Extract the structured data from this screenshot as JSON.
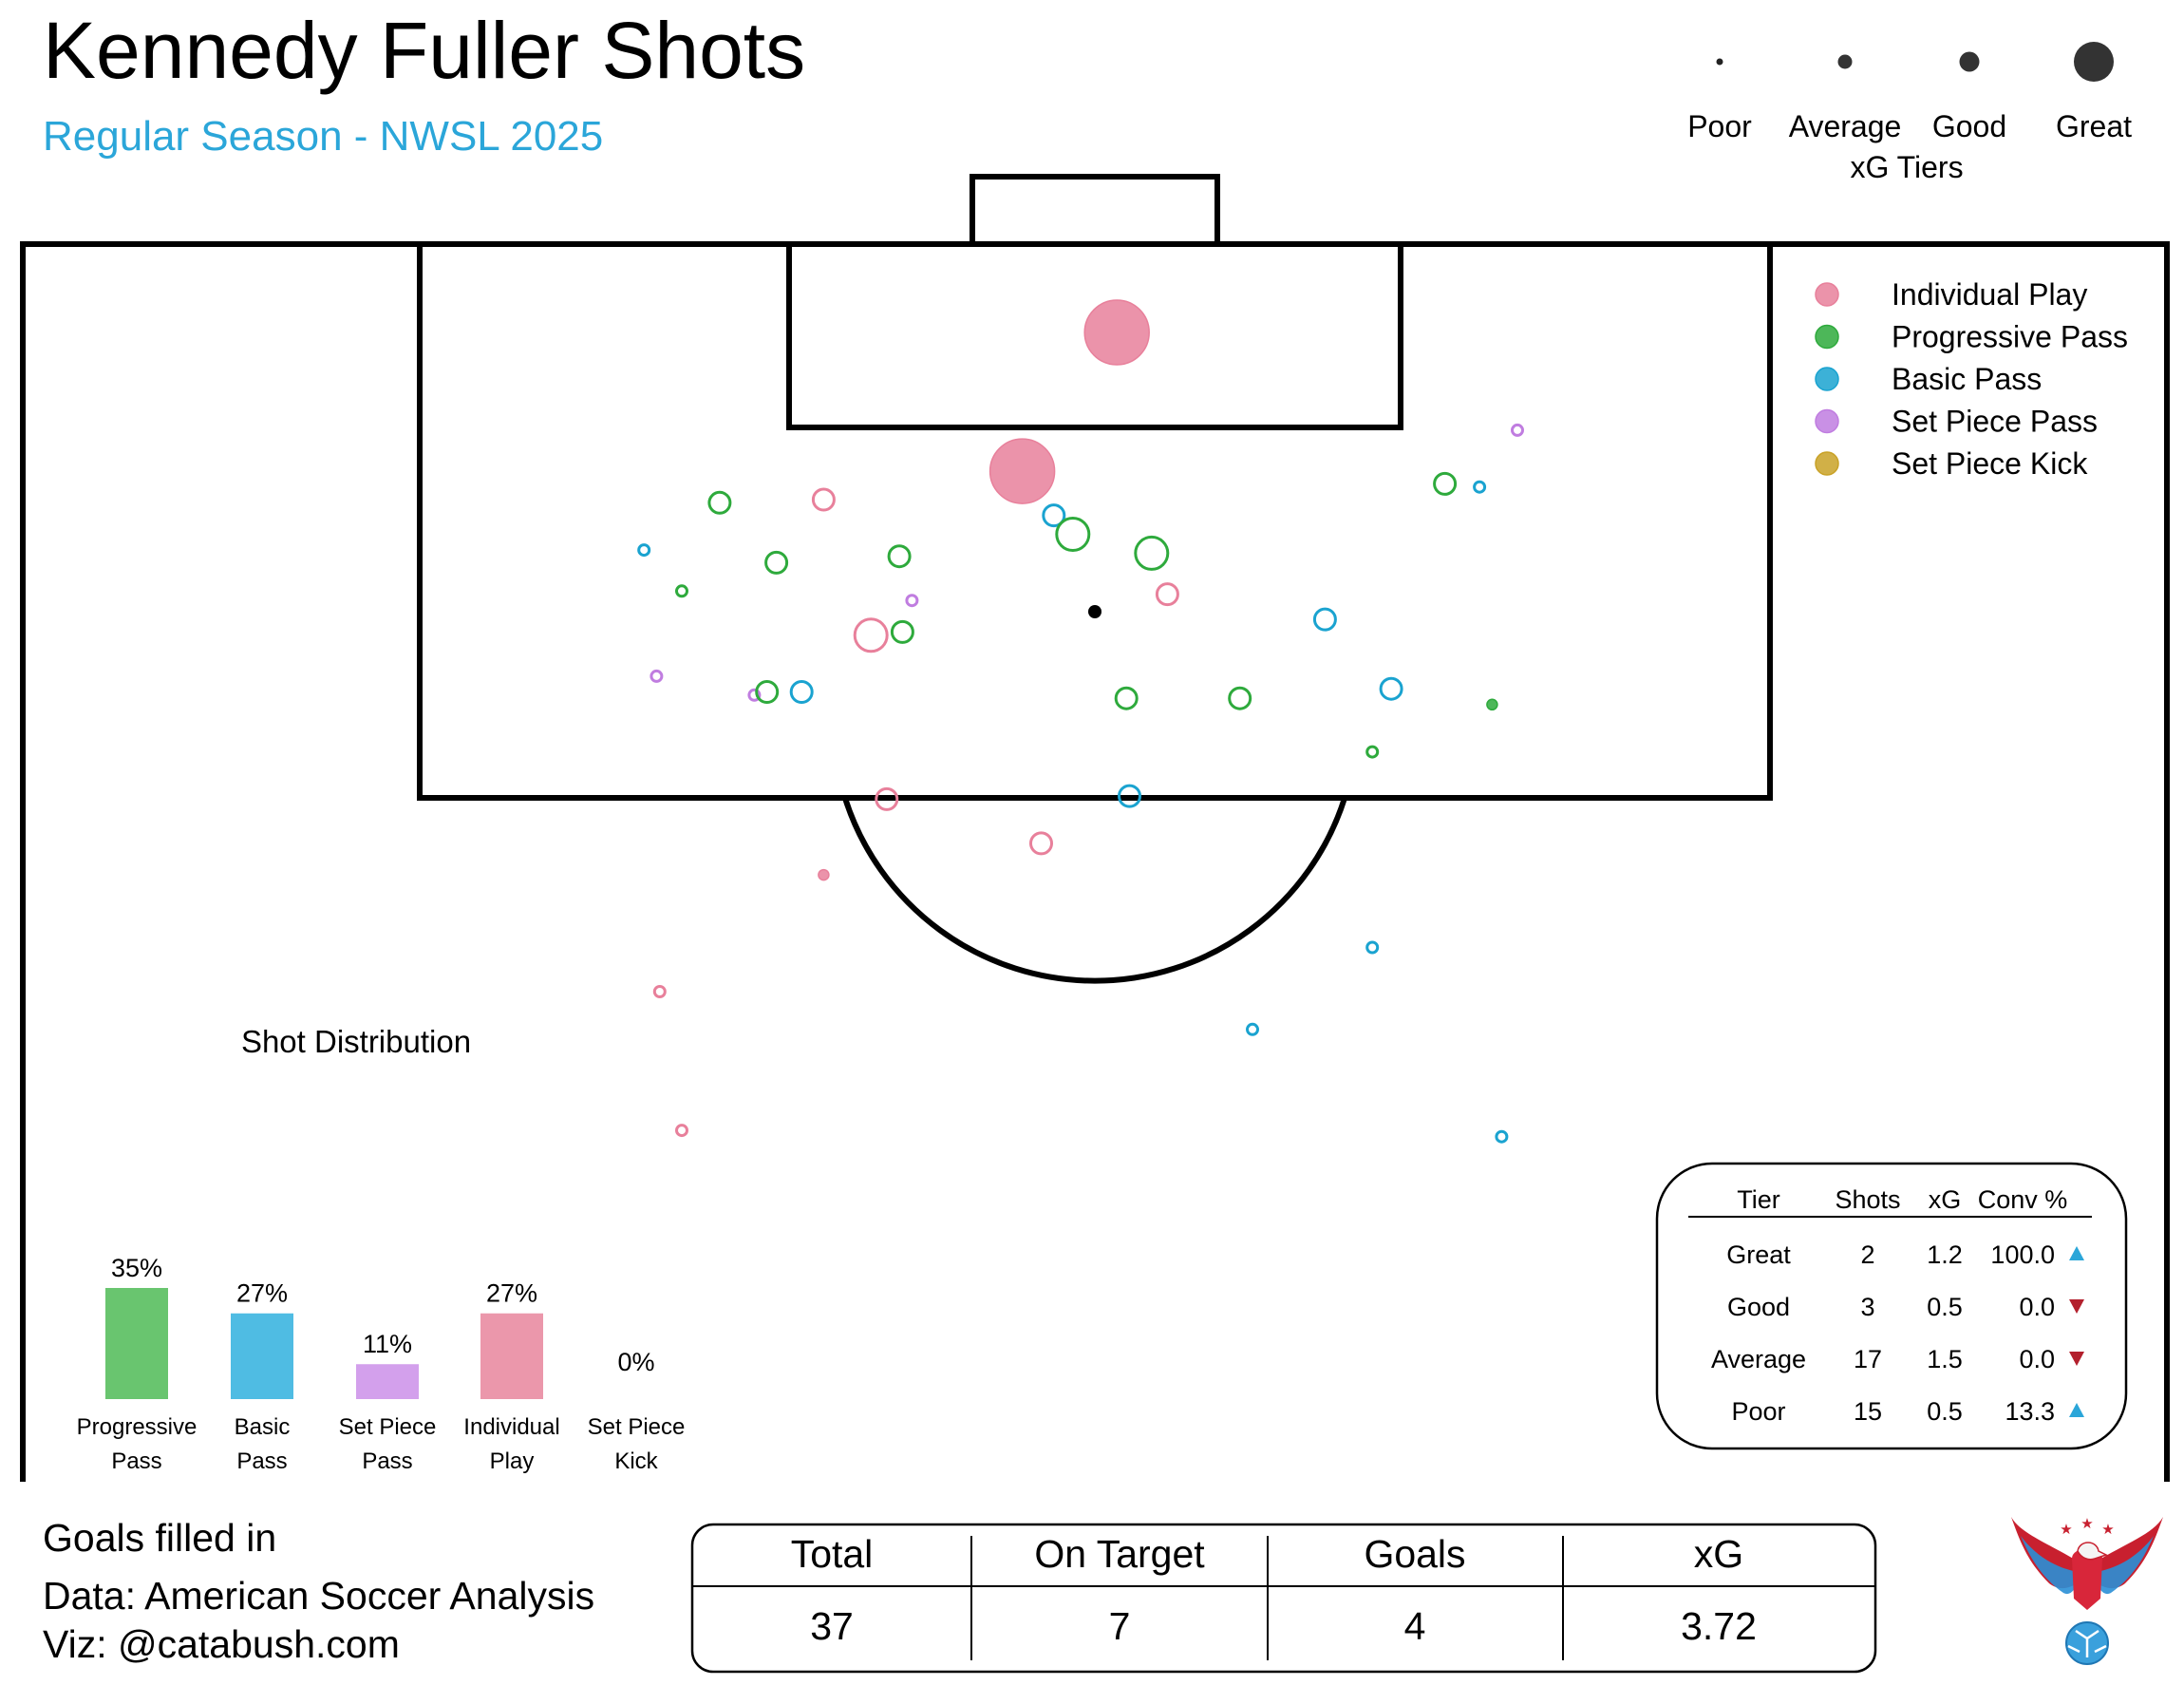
{
  "header": {
    "title": "Kennedy Fuller Shots",
    "subtitle": "Regular Season - NWSL 2025"
  },
  "colors": {
    "individual_play": "#e8809b",
    "progressive_pass": "#2eaa3c",
    "basic_pass": "#1aa3d0",
    "set_piece_pass": "#c07de0",
    "set_piece_kick": "#c9a227",
    "subtitle": "#2ba6d9",
    "up_arrow": "#2ba6d9",
    "down_arrow": "#b3202d",
    "bar_progressive": "#69c56f",
    "bar_basic": "#4fbce3",
    "bar_set_piece_pass": "#d3a0ec",
    "bar_individual": "#eb97ab",
    "bar_set_piece_kick": "#c9a227"
  },
  "xg_tiers": {
    "title": "xG Tiers",
    "items": [
      "Poor",
      "Average",
      "Good",
      "Great"
    ]
  },
  "legend": {
    "items": [
      {
        "label": "Individual Play",
        "key": "individual_play"
      },
      {
        "label": "Progressive Pass",
        "key": "progressive_pass"
      },
      {
        "label": "Basic Pass",
        "key": "basic_pass"
      },
      {
        "label": "Set Piece Pass",
        "key": "set_piece_pass"
      },
      {
        "label": "Set Piece Kick",
        "key": "set_piece_kick"
      }
    ]
  },
  "chart_data": [
    {
      "type": "scatter",
      "description_key": "shot_map",
      "notes": "Shot locations in pitch metres: x = distance from left touchline (0-68), y = distance from goal line (0-35 visible). Size = xG tier, filled = goal.",
      "x_range": [
        0,
        68
      ],
      "y_range": [
        0,
        35
      ],
      "shots": [
        {
          "x": 34.7,
          "y": 2.8,
          "tier": "Great",
          "category": "individual_play",
          "goal": true
        },
        {
          "x": 31.7,
          "y": 7.2,
          "tier": "Great",
          "category": "individual_play",
          "goal": true
        },
        {
          "x": 22.1,
          "y": 8.2,
          "tier": "Average",
          "category": "progressive_pass",
          "goal": false
        },
        {
          "x": 25.4,
          "y": 8.1,
          "tier": "Average",
          "category": "individual_play",
          "goal": false
        },
        {
          "x": 19.7,
          "y": 9.7,
          "tier": "Poor",
          "category": "basic_pass",
          "goal": false
        },
        {
          "x": 23.9,
          "y": 10.1,
          "tier": "Average",
          "category": "progressive_pass",
          "goal": false
        },
        {
          "x": 27.8,
          "y": 9.9,
          "tier": "Average",
          "category": "progressive_pass",
          "goal": false
        },
        {
          "x": 20.9,
          "y": 11.0,
          "tier": "Poor",
          "category": "progressive_pass",
          "goal": false
        },
        {
          "x": 28.2,
          "y": 11.3,
          "tier": "Poor",
          "category": "set_piece_pass",
          "goal": false
        },
        {
          "x": 32.7,
          "y": 8.6,
          "tier": "Average",
          "category": "basic_pass",
          "goal": false
        },
        {
          "x": 33.3,
          "y": 9.2,
          "tier": "Good",
          "category": "progressive_pass",
          "goal": false
        },
        {
          "x": 35.8,
          "y": 9.8,
          "tier": "Good",
          "category": "progressive_pass",
          "goal": false
        },
        {
          "x": 36.3,
          "y": 11.1,
          "tier": "Average",
          "category": "individual_play",
          "goal": false
        },
        {
          "x": 26.9,
          "y": 12.4,
          "tier": "Good",
          "category": "individual_play",
          "goal": false
        },
        {
          "x": 27.9,
          "y": 12.3,
          "tier": "Average",
          "category": "progressive_pass",
          "goal": false
        },
        {
          "x": 41.3,
          "y": 11.9,
          "tier": "Average",
          "category": "basic_pass",
          "goal": false
        },
        {
          "x": 45.1,
          "y": 7.6,
          "tier": "Average",
          "category": "progressive_pass",
          "goal": false
        },
        {
          "x": 46.2,
          "y": 7.7,
          "tier": "Poor",
          "category": "basic_pass",
          "goal": false
        },
        {
          "x": 47.4,
          "y": 5.9,
          "tier": "Poor",
          "category": "set_piece_pass",
          "goal": false
        },
        {
          "x": 20.1,
          "y": 13.7,
          "tier": "Poor",
          "category": "set_piece_pass",
          "goal": false
        },
        {
          "x": 23.2,
          "y": 14.3,
          "tier": "Poor",
          "category": "set_piece_pass",
          "goal": false
        },
        {
          "x": 23.6,
          "y": 14.2,
          "tier": "Average",
          "category": "progressive_pass",
          "goal": false
        },
        {
          "x": 24.7,
          "y": 14.2,
          "tier": "Average",
          "category": "basic_pass",
          "goal": false
        },
        {
          "x": 35.0,
          "y": 14.4,
          "tier": "Average",
          "category": "progressive_pass",
          "goal": false
        },
        {
          "x": 38.6,
          "y": 14.4,
          "tier": "Average",
          "category": "progressive_pass",
          "goal": false
        },
        {
          "x": 43.4,
          "y": 14.1,
          "tier": "Average",
          "category": "basic_pass",
          "goal": false
        },
        {
          "x": 46.6,
          "y": 14.6,
          "tier": "Poor",
          "category": "progressive_pass",
          "goal": true
        },
        {
          "x": 42.8,
          "y": 16.1,
          "tier": "Poor",
          "category": "progressive_pass",
          "goal": false
        },
        {
          "x": 27.4,
          "y": 17.6,
          "tier": "Average",
          "category": "individual_play",
          "goal": false
        },
        {
          "x": 35.1,
          "y": 17.5,
          "tier": "Average",
          "category": "basic_pass",
          "goal": false
        },
        {
          "x": 32.3,
          "y": 19.0,
          "tier": "Average",
          "category": "individual_play",
          "goal": false
        },
        {
          "x": 25.4,
          "y": 20.0,
          "tier": "Poor",
          "category": "individual_play",
          "goal": true
        },
        {
          "x": 42.8,
          "y": 22.3,
          "tier": "Poor",
          "category": "basic_pass",
          "goal": false
        },
        {
          "x": 20.2,
          "y": 23.7,
          "tier": "Poor",
          "category": "individual_play",
          "goal": false
        },
        {
          "x": 39.0,
          "y": 24.9,
          "tier": "Poor",
          "category": "basic_pass",
          "goal": false
        },
        {
          "x": 20.9,
          "y": 28.1,
          "tier": "Poor",
          "category": "individual_play",
          "goal": false
        },
        {
          "x": 46.9,
          "y": 28.3,
          "tier": "Poor",
          "category": "basic_pass",
          "goal": false
        }
      ]
    },
    {
      "type": "bar",
      "title": "Shot Distribution",
      "categories": [
        "Progressive Pass",
        "Basic Pass",
        "Set Piece Pass",
        "Individual Play",
        "Set Piece Kick"
      ],
      "category_lines": [
        [
          "Progressive",
          "Pass"
        ],
        [
          "Basic",
          "Pass"
        ],
        [
          "Set Piece",
          "Pass"
        ],
        [
          "Individual",
          "Play"
        ],
        [
          "Set Piece",
          "Kick"
        ]
      ],
      "values": [
        35,
        27,
        11,
        27,
        0
      ],
      "value_labels": [
        "35%",
        "27%",
        "11%",
        "27%",
        "0%"
      ],
      "color_keys": [
        "bar_progressive",
        "bar_basic",
        "bar_set_piece_pass",
        "bar_individual",
        "bar_set_piece_kick"
      ],
      "ylim": [
        0,
        35
      ]
    },
    {
      "type": "table",
      "columns": [
        "Tier",
        "Shots",
        "xG",
        "Conv %"
      ],
      "rows": [
        {
          "tier": "Great",
          "shots": "2",
          "xg": "1.2",
          "conv": "100.0",
          "trend": "up"
        },
        {
          "tier": "Good",
          "shots": "3",
          "xg": "0.5",
          "conv": "0.0",
          "trend": "down"
        },
        {
          "tier": "Average",
          "shots": "17",
          "xg": "1.5",
          "conv": "0.0",
          "trend": "down"
        },
        {
          "tier": "Poor",
          "shots": "15",
          "xg": "0.5",
          "conv": "13.3",
          "trend": "up"
        }
      ]
    },
    {
      "type": "table",
      "columns": [
        "Total",
        "On Target",
        "Goals",
        "xG"
      ],
      "values": [
        "37",
        "7",
        "4",
        "3.72"
      ]
    }
  ],
  "footer": {
    "note": "Goals filled in",
    "data_credit": "Data: American Soccer Analysis",
    "viz_credit": "Viz: @catabush.com"
  },
  "logo": {
    "description_key": "eagle-soccer-logo"
  }
}
